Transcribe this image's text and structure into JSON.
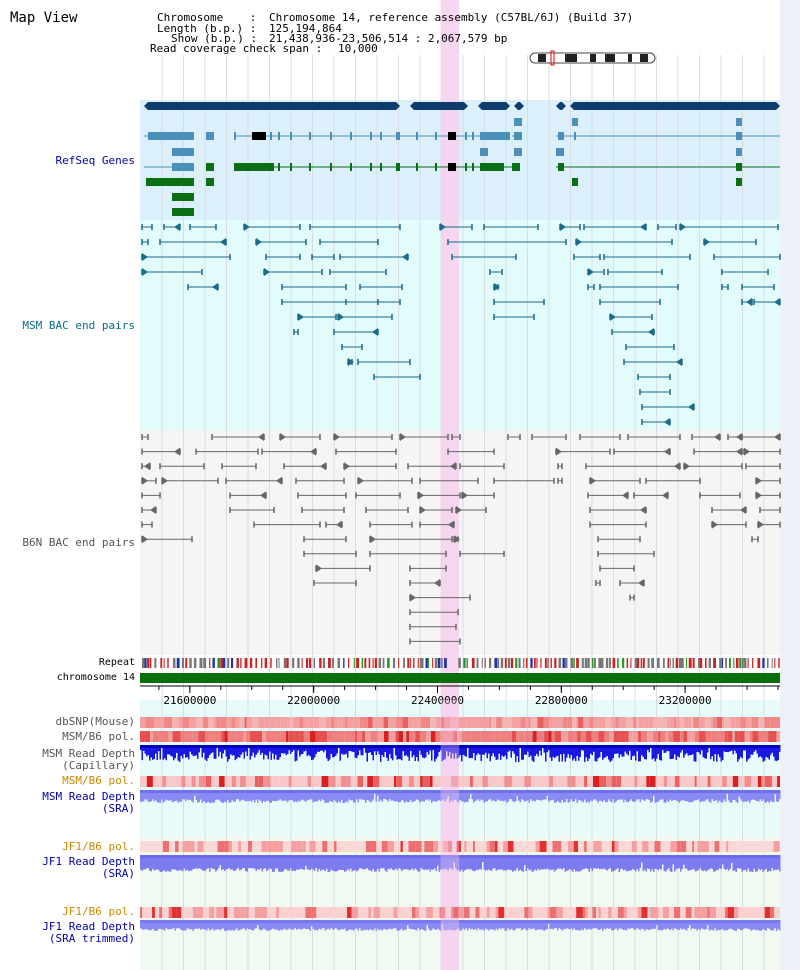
{
  "title": "Map View",
  "info": {
    "chromosome_label": "Chromosome    :",
    "chromosome_value": "Chromosome 14, reference assembly (C57BL/6J) (Build 37)",
    "length_label": "Length (b.p.) :",
    "length_value": "125,194,864",
    "show_label": "Show (b.p.) :",
    "show_value": "21,438,936-23,506,514 : 2,067,579 bp",
    "coverage_label": "Read coverage check span :",
    "coverage_value": "10,000"
  },
  "tracks": {
    "refseq": "RefSeq Genes",
    "msm_bac": "MSM BAC end pairs",
    "b6n_bac": "B6N BAC end pairs",
    "repeat": "Repeat",
    "chromosome": "chromosome 14",
    "dbsnp": "dbSNP(Mouse)",
    "msm_b6_pol_1": "MSM/B6 pol.",
    "msm_depth_cap_1": "MSM Read Depth",
    "msm_depth_cap_2": "(Capillary)",
    "msm_b6_pol_2": "MSM/B6 pol.",
    "msm_depth_sra_1": "MSM Read Depth",
    "msm_depth_sra_2": "(SRA)",
    "jf1_b6_pol_1": "JF1/B6 pol.",
    "jf1_depth_sra_1": "JF1 Read Depth",
    "jf1_depth_sra_2": "(SRA)",
    "jf1_b6_pol_2": "JF1/B6 pol.",
    "jf1_depth_trim_1": "JF1 Read Depth",
    "jf1_depth_trim_2": "(SRA trimmed)"
  },
  "axis": {
    "ticks": [
      21600000,
      22000000,
      22400000,
      22800000,
      23200000
    ],
    "tick_labels": [
      "21600000",
      "22000000",
      "22400000",
      "22800000",
      "23200000"
    ],
    "view_start": 21438936,
    "view_end": 23506514,
    "highlight_start": 22410000,
    "highlight_end": 22470000
  },
  "colors": {
    "refseq_bg": "#dbf0fa",
    "msm_bg": "#e2fbfb",
    "b6n_bg": "#f5f5f5",
    "lower_bg": "#e8fbfb",
    "jf1_bg": "#f0faf0",
    "highlight": "#f6d2f0",
    "gene_dark": "#0f3c6e",
    "gene_mid": "#4a90b8",
    "gene_green": "#0a6e12",
    "msm_pair": "#1a6a8a",
    "b6n_pair": "#666666",
    "chromosome_bar": "#0a6e0a",
    "track_blue_label": "#0000aa",
    "track_orange_label": "#cc8800"
  }
}
